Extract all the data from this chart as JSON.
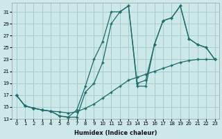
{
  "xlabel": "Humidex (Indice chaleur)",
  "bg_color": "#cce8e8",
  "grid_color": "#aacccc",
  "line_color": "#1a6b6b",
  "xlim": [
    -0.5,
    23.5
  ],
  "ylim": [
    13,
    32.5
  ],
  "xticks": [
    0,
    1,
    2,
    3,
    4,
    5,
    6,
    7,
    8,
    9,
    10,
    11,
    12,
    13,
    14,
    15,
    16,
    17,
    18,
    19,
    20,
    21,
    22,
    23
  ],
  "yticks": [
    13,
    15,
    17,
    19,
    21,
    23,
    25,
    27,
    29,
    31
  ],
  "curveA_x": [
    0,
    1,
    2,
    3,
    4,
    5,
    6,
    7,
    8,
    9,
    10,
    11,
    12,
    13,
    14,
    15,
    16,
    17,
    18,
    19,
    20,
    21,
    22,
    23
  ],
  "curveA_y": [
    17.0,
    15.2,
    14.8,
    14.5,
    14.3,
    14.2,
    14.0,
    14.2,
    14.8,
    15.5,
    16.5,
    17.5,
    18.5,
    19.5,
    20.0,
    20.5,
    21.0,
    21.5,
    22.0,
    22.5,
    22.8,
    23.0,
    23.0,
    23.0
  ],
  "curveB_x": [
    0,
    1,
    2,
    3,
    4,
    5,
    6,
    7,
    8,
    9,
    10,
    11,
    12,
    13,
    14,
    15,
    16,
    17,
    18,
    19,
    20,
    21,
    22,
    23
  ],
  "curveB_y": [
    17.0,
    15.2,
    14.8,
    14.5,
    14.3,
    13.5,
    13.3,
    14.5,
    18.5,
    23.0,
    26.0,
    31.0,
    31.0,
    32.0,
    19.0,
    19.5,
    25.5,
    29.5,
    30.0,
    32.0,
    26.5,
    25.5,
    25.0,
    23.0
  ],
  "curveC_x": [
    0,
    1,
    2,
    3,
    4,
    5,
    6,
    7,
    8,
    9,
    10,
    11,
    12,
    13,
    14,
    15,
    16,
    17,
    18,
    19,
    20,
    21,
    22,
    23
  ],
  "curveC_y": [
    17.0,
    15.2,
    14.8,
    14.5,
    14.3,
    13.5,
    13.3,
    13.3,
    17.5,
    19.0,
    22.5,
    29.0,
    31.0,
    32.0,
    18.5,
    18.5,
    25.5,
    29.5,
    30.0,
    32.0,
    26.5,
    25.5,
    25.0,
    23.0
  ]
}
